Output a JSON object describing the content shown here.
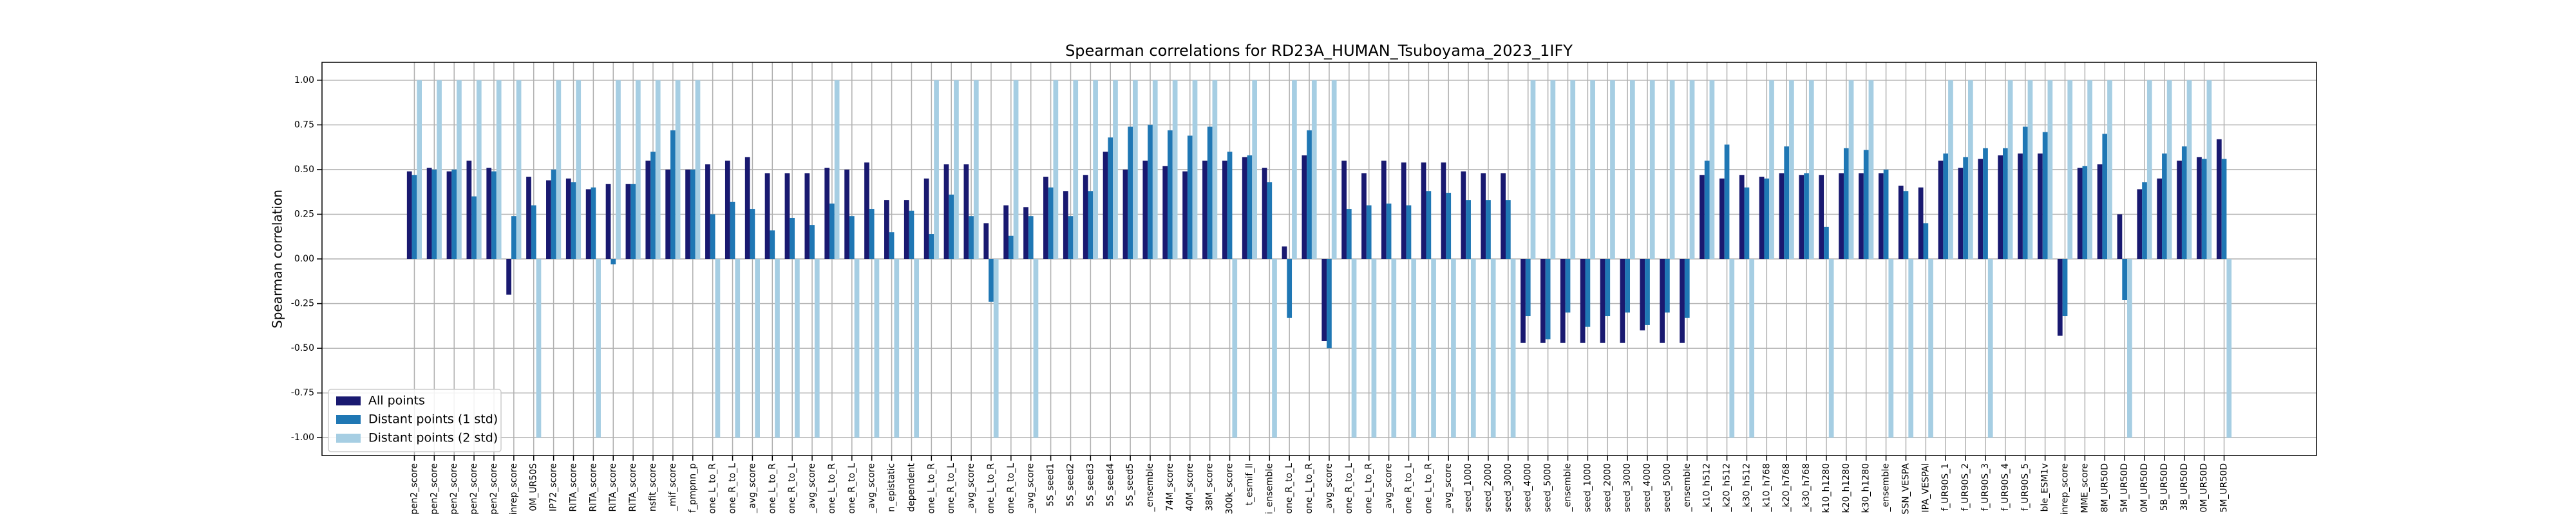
{
  "chart_data": {
    "type": "bar",
    "title": "Spearman correlations for RD23A_HUMAN_Tsuboyama_2023_1IFY",
    "y_label": "Spearman correlation",
    "ylim": [
      -1.1,
      1.1
    ],
    "yticks": [
      {
        "value": -1,
        "label": "-1.00"
      },
      {
        "value": -0.75,
        "label": "-0.75"
      },
      {
        "value": -0.5,
        "label": "-0.50"
      },
      {
        "value": -0.25,
        "label": "-0.25"
      },
      {
        "value": 0,
        "label": "0.00"
      },
      {
        "value": 0.25,
        "label": "0.25"
      },
      {
        "value": 0.5,
        "label": "0.50"
      },
      {
        "value": 0.75,
        "label": "0.75"
      },
      {
        "value": 1,
        "label": "1.00"
      }
    ],
    "grid": true,
    "legend_loc": "lower left",
    "categories": [
      "pen2_score",
      "pen2_score",
      "pen2_score",
      "pen2_score",
      "pen2_score",
      "inrep_score",
      "0M_UR50S",
      "IP72_score",
      "RITA_score",
      "RITA_score",
      "RITA_score",
      "RITA_score",
      "nsfit_score",
      "_mif_score",
      "f_pmpnn_p",
      "one_L_to_R",
      "one_R_to_L",
      "_avg_score",
      "one_L_to_R",
      "one_R_to_L",
      "_avg_score",
      "one_L_to_R",
      "one_R_to_L",
      "_avg_score",
      "n_epistatic",
      "dependent",
      "one_L_to_R",
      "one_R_to_L",
      "_avg_score",
      "one_L_to_R",
      "one_R_to_L",
      "_avg_score",
      "5S_seed1",
      "5S_seed2",
      "5S_seed3",
      "5S_seed4",
      "5S_seed5",
      "_ensemble",
      "74M_score",
      "40M_score",
      "38M_score",
      "300k_score",
      "t_esmif_ll",
      "i_ensemble",
      "one_R_to_L",
      "one_L_to_R",
      "_avg_score",
      "one_R_to_L",
      "one_L_to_R",
      "_avg_score",
      "one_R_to_L",
      "one_L_to_R",
      "_avg_score",
      "seed_1000",
      "seed_2000",
      "seed_3000",
      "seed_4000",
      "seed_5000",
      "_ensemble",
      "seed_1000",
      "seed_2000",
      "seed_3000",
      "seed_4000",
      "seed_5000",
      "_ensemble",
      "_k10_h512",
      "_k20_h512",
      "_k30_h512",
      "_k10_h768",
      "_k20_h768",
      "_k30_h768",
      "k10_h1280",
      "k20_h1280",
      "k30_h1280",
      "_ensemble",
      "SSN_VESPA",
      "IPA_VESPAl",
      "f_UR90S_1",
      "f_UR90S_2",
      "f_UR90S_3",
      "f_UR90S_4",
      "f_UR90S_5",
      "ble_ESM1v",
      "inrep_score",
      "MME_score",
      "8M_UR50D",
      "5M_UR50D",
      "0M_UR50D",
      "5B_UR50D",
      "3B_UR50D",
      "0M_UR50D",
      "5M_UR50D"
    ],
    "series": [
      {
        "name": "All points",
        "color": "#191970",
        "values": [
          0.49,
          0.51,
          0.49,
          0.55,
          0.51,
          -0.2,
          0.46,
          0.44,
          0.45,
          0.39,
          0.42,
          0.42,
          0.55,
          0.5,
          0.5,
          0.53,
          0.55,
          0.57,
          0.48,
          0.48,
          0.48,
          0.51,
          0.5,
          0.54,
          0.33,
          0.33,
          0.45,
          0.53,
          0.53,
          0.2,
          0.3,
          0.29,
          0.46,
          0.38,
          0.47,
          0.6,
          0.5,
          0.55,
          0.52,
          0.49,
          0.55,
          0.55,
          0.57,
          0.51,
          0.07,
          0.58,
          -0.46,
          0.55,
          0.48,
          0.55,
          0.54,
          0.54,
          0.54,
          0.49,
          0.48,
          0.48,
          -0.47,
          -0.47,
          -0.47,
          -0.47,
          -0.47,
          -0.47,
          -0.4,
          -0.47,
          -0.47,
          0.47,
          0.45,
          0.47,
          0.46,
          0.48,
          0.47,
          0.47,
          0.48,
          0.48,
          0.48,
          0.41,
          0.4,
          0.55,
          0.51,
          0.56,
          0.58,
          0.59,
          0.59,
          -0.43,
          0.51,
          0.53,
          0.25,
          0.39,
          0.45,
          0.55,
          0.57,
          0.67
        ]
      },
      {
        "name": "Distant points (1 std)",
        "color": "#1f77b4",
        "values": [
          0.47,
          0.5,
          0.5,
          0.35,
          0.49,
          0.24,
          0.3,
          0.5,
          0.43,
          0.4,
          -0.03,
          0.42,
          0.6,
          0.72,
          0.5,
          0.25,
          0.32,
          0.28,
          0.16,
          0.23,
          0.19,
          0.31,
          0.24,
          0.28,
          0.15,
          0.27,
          0.14,
          0.36,
          0.24,
          -0.24,
          0.13,
          0.24,
          0.4,
          0.24,
          0.38,
          0.68,
          0.74,
          0.75,
          0.72,
          0.69,
          0.74,
          0.6,
          0.58,
          0.43,
          -0.33,
          0.72,
          -0.5,
          0.28,
          0.3,
          0.31,
          0.3,
          0.38,
          0.37,
          0.33,
          0.33,
          0.33,
          -0.32,
          -0.45,
          -0.3,
          -0.38,
          -0.32,
          -0.3,
          -0.37,
          -0.3,
          -0.33,
          0.55,
          0.64,
          0.4,
          0.45,
          0.63,
          0.48,
          0.18,
          0.62,
          0.61,
          0.5,
          0.38,
          0.2,
          0.59,
          0.57,
          0.62,
          0.62,
          0.74,
          0.71,
          -0.32,
          0.52,
          0.7,
          -0.23,
          0.43,
          0.59,
          0.63,
          0.56,
          0.56
        ]
      },
      {
        "name": "Distant points (2 std)",
        "color": "#a6cee3",
        "values": [
          1,
          1,
          1,
          1,
          1,
          1,
          -1,
          1,
          1,
          -1,
          1,
          1,
          1,
          1,
          1,
          -1,
          -1,
          -1,
          -1,
          -1,
          -1,
          1,
          -1,
          -1,
          -1,
          -1,
          1,
          1,
          1,
          -1,
          1,
          -1,
          1,
          1,
          1,
          1,
          1,
          1,
          1,
          1,
          1,
          -1,
          1,
          -1,
          1,
          1,
          1,
          -1,
          -1,
          -1,
          -1,
          -1,
          -1,
          -1,
          -1,
          -1,
          1,
          1,
          1,
          1,
          1,
          1,
          1,
          1,
          1,
          1,
          -1,
          -1,
          1,
          1,
          1,
          -1,
          1,
          1,
          -1,
          -1,
          -1,
          1,
          1,
          -1,
          1,
          1,
          1,
          1,
          1,
          1,
          -1,
          1,
          1,
          1,
          1,
          -1
        ]
      }
    ]
  }
}
